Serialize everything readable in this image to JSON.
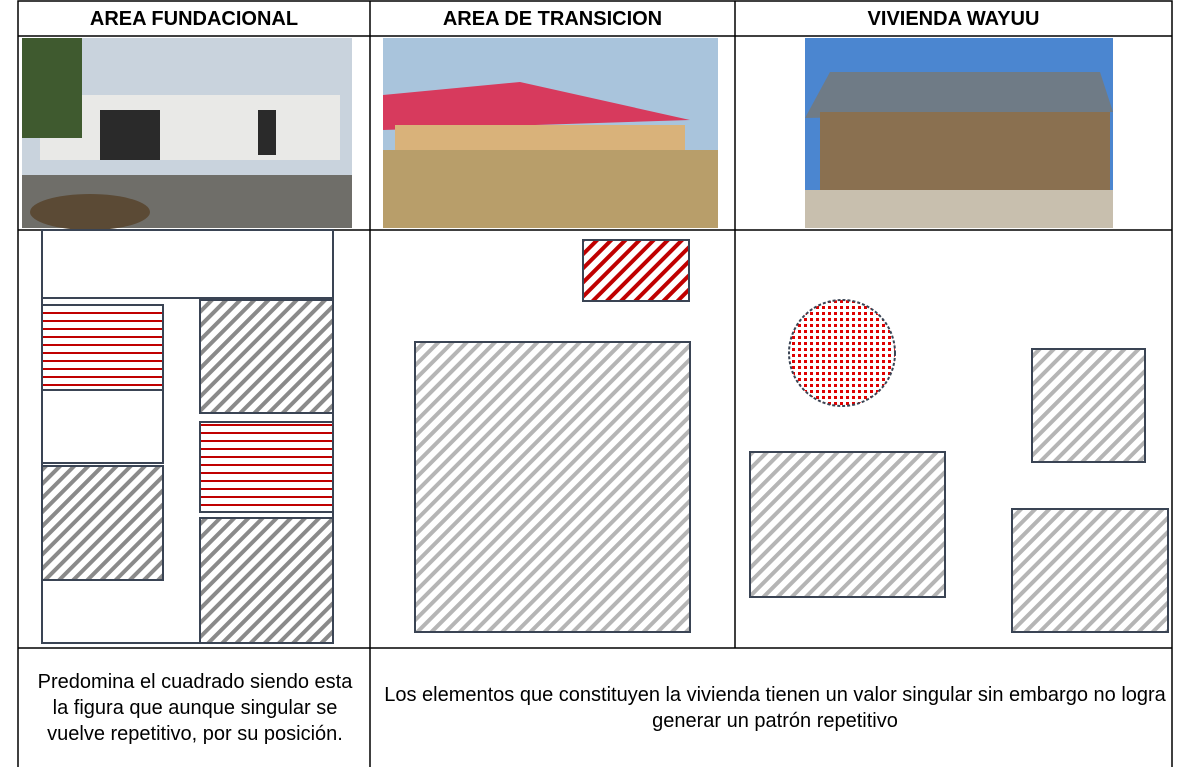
{
  "header": {
    "columns": [
      "AREA FUNDACIONAL",
      "AREA DE TRANSICION",
      "VIVIENDA WAYUU"
    ]
  },
  "footer": {
    "first": "Predomina el cuadrado siendo esta la figura que aunque singular se vuelve repetitivo, por su posición.",
    "second": "Los elementos que constituyen la vivienda tienen un valor singular sin embargo no logra generar un patrón repetitivo"
  }
}
